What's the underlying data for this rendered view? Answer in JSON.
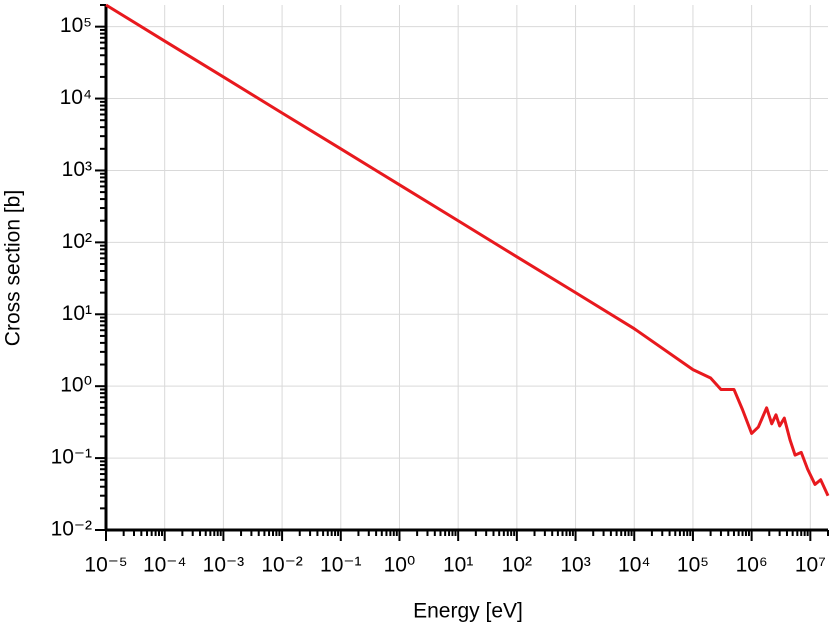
{
  "chart_data": {
    "type": "line",
    "log_x": true,
    "log_y": true,
    "grid": true,
    "x_label": "Energy [eV]",
    "y_label": "Cross section [b]",
    "xlim": [
      1e-05,
      20000000
    ],
    "ylim": [
      0.01,
      200000
    ],
    "xticks": [
      {
        "value": 1e-05,
        "label": "10⁻⁵"
      },
      {
        "value": 0.0001,
        "label": "10⁻⁴"
      },
      {
        "value": 0.001,
        "label": "10⁻³"
      },
      {
        "value": 0.01,
        "label": "10⁻²"
      },
      {
        "value": 0.1,
        "label": "10⁻¹"
      },
      {
        "value": 1,
        "label": "10⁰"
      },
      {
        "value": 10,
        "label": "10¹"
      },
      {
        "value": 100,
        "label": "10²"
      },
      {
        "value": 1000,
        "label": "10³"
      },
      {
        "value": 10000,
        "label": "10⁴"
      },
      {
        "value": 100000,
        "label": "10⁵"
      },
      {
        "value": 1000000,
        "label": "10⁶"
      },
      {
        "value": 10000000,
        "label": "10⁷"
      }
    ],
    "yticks": [
      {
        "value": 0.01,
        "label": "10⁻²"
      },
      {
        "value": 0.1,
        "label": "10⁻¹"
      },
      {
        "value": 1,
        "label": "10⁰"
      },
      {
        "value": 10,
        "label": "10¹"
      },
      {
        "value": 100,
        "label": "10²"
      },
      {
        "value": 1000,
        "label": "10³"
      },
      {
        "value": 10000,
        "label": "10⁴"
      },
      {
        "value": 100000,
        "label": "10⁵"
      }
    ],
    "series": [
      {
        "color": "#e8191e",
        "x": [
          1e-05,
          0.0001,
          0.001,
          0.01,
          0.1,
          1,
          10,
          100,
          1000,
          10000,
          100000,
          200000,
          300000,
          500000,
          700000,
          1000000,
          1300000,
          1800000,
          2200000,
          2600000,
          3000000,
          3600000,
          4500000,
          5500000,
          7000000,
          9000000,
          12000000,
          15000000,
          20000000
        ],
        "values": [
          200000,
          63000,
          20000,
          6300,
          2000,
          632,
          200,
          63,
          20,
          6.3,
          1.7,
          1.3,
          0.9,
          0.9,
          0.47,
          0.22,
          0.27,
          0.5,
          0.3,
          0.4,
          0.28,
          0.36,
          0.18,
          0.11,
          0.12,
          0.07,
          0.043,
          0.05,
          0.03
        ]
      }
    ]
  }
}
